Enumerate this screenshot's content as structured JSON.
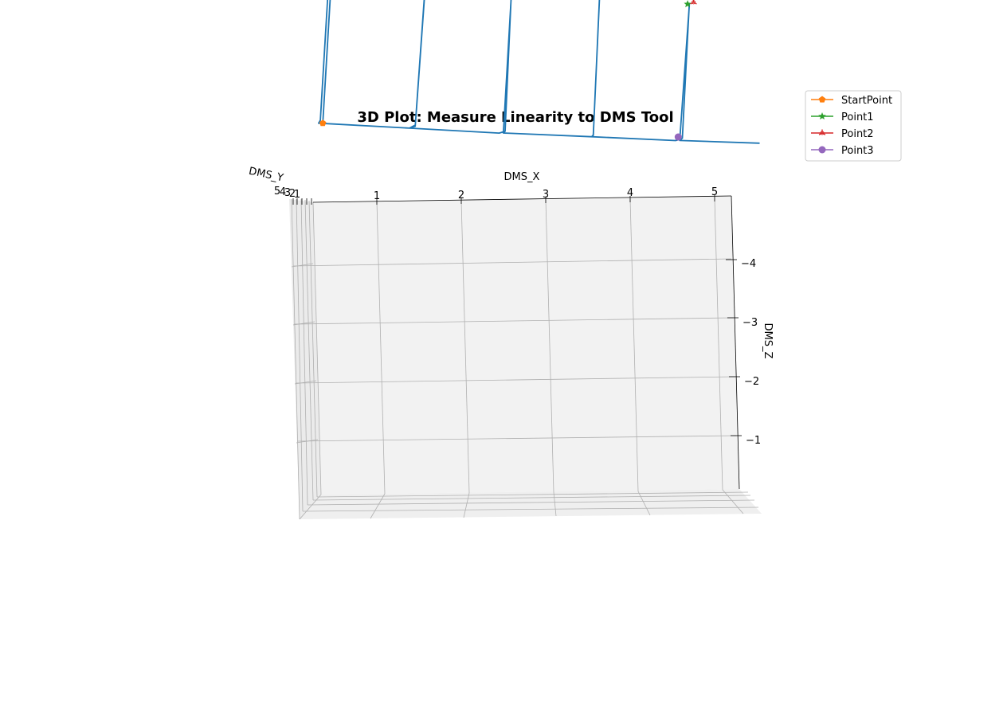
{
  "chart_data": {
    "type": "line",
    "projection": "3d",
    "title": "3D Plot: Measure Linearity to DMS Tool",
    "xlabel": "DMS_X",
    "ylabel": "DMS_Y",
    "zlabel": "DMS_Z",
    "x_ticks": [
      "1",
      "2",
      "3",
      "4",
      "5"
    ],
    "y_ticks": [
      "5",
      "4",
      "3",
      "2",
      "1"
    ],
    "z_ticks": [
      "−4",
      "−3",
      "−2",
      "−1"
    ],
    "grid": true,
    "legend_position": "top-right, outside axes",
    "series": [
      {
        "color": "#1f77b4",
        "x": [
          0.05,
          0.1,
          0.15,
          0.12,
          0.07,
          0.05,
          1.13,
          1.2,
          1.27,
          1.27,
          1.2,
          1.13,
          2.2,
          2.25,
          2.3,
          2.3,
          2.27,
          2.25,
          3.3,
          3.32,
          3.35,
          3.35,
          3.32,
          3.3,
          4.3,
          4.35,
          4.42,
          4.42,
          4.38,
          4.35,
          5.3
        ],
        "z": [
          -3.6,
          -3.57,
          -1.4,
          -1.37,
          -3.55,
          -3.6,
          -3.7,
          -3.67,
          -1.43,
          -1.4,
          -3.65,
          -3.7,
          -3.8,
          -3.78,
          -1.5,
          -1.48,
          -3.77,
          -3.8,
          -3.88,
          -3.86,
          -1.53,
          -1.51,
          -3.85,
          -3.88,
          -3.96,
          -3.94,
          -1.66,
          -1.63,
          -3.92,
          -3.96,
          -4.02
        ]
      },
      {
        "name": "StartPoint",
        "color": "#ff7f0e",
        "marker": "pentagon",
        "x": [
          0.1
        ],
        "z": [
          -3.6
        ]
      },
      {
        "name": "Point1",
        "color": "#2ca02c",
        "marker": "star",
        "x": [
          4.4
        ],
        "z": [
          -1.63
        ]
      },
      {
        "name": "Point2",
        "color": "#d62728",
        "marker": "tri-star",
        "x": [
          4.47
        ],
        "z": [
          -1.6
        ]
      },
      {
        "name": "Point3",
        "color": "#9467bd",
        "marker": "circle",
        "x": [
          4.33
        ],
        "z": [
          -3.9
        ]
      }
    ]
  }
}
